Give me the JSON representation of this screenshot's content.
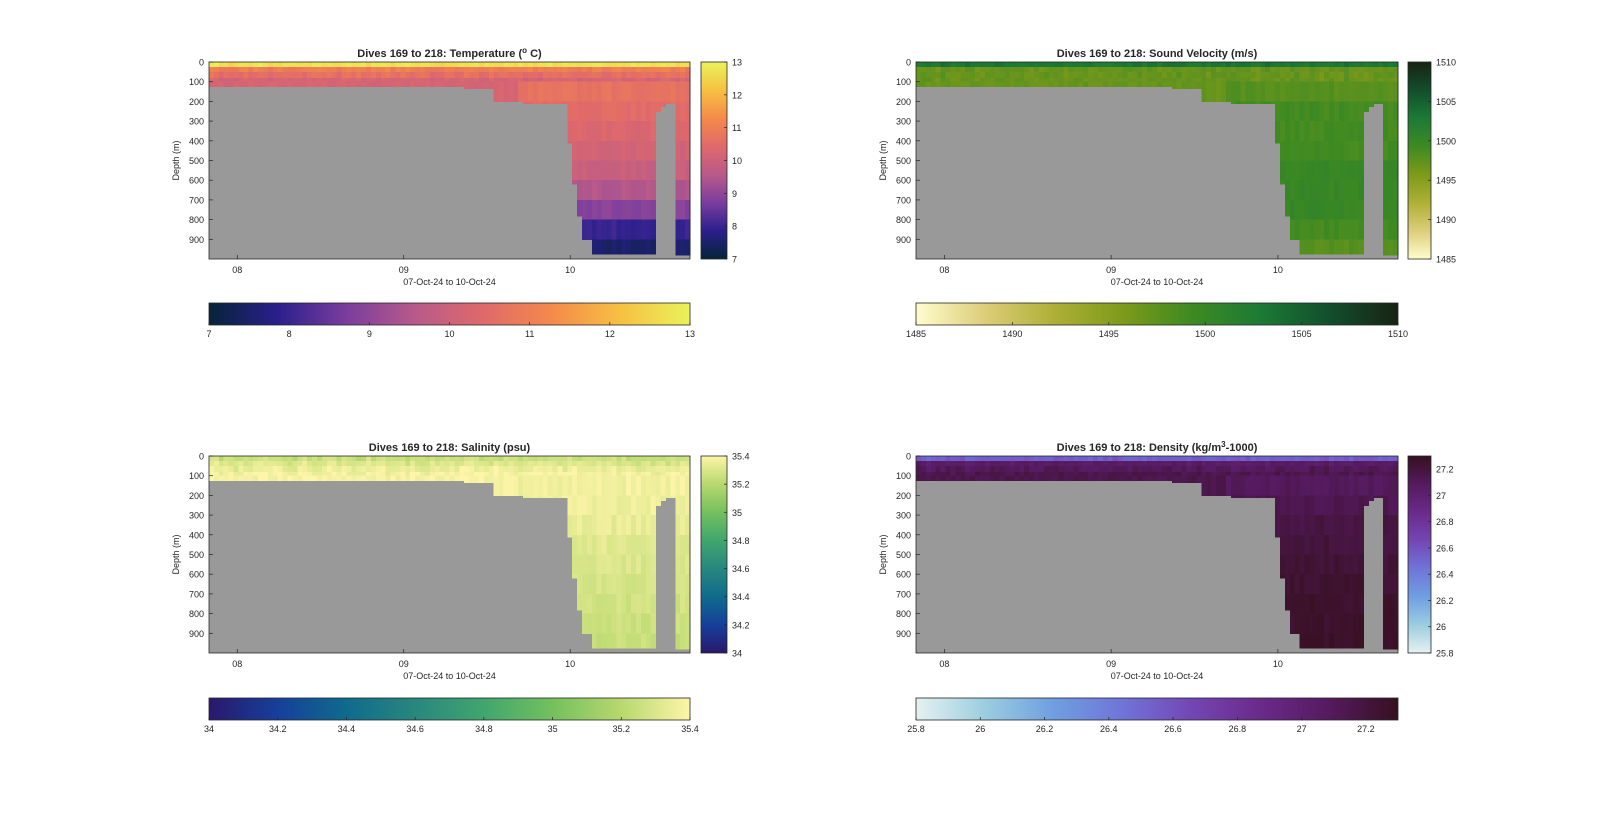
{
  "chart_data": [
    {
      "type": "heatmap",
      "key": "temperature",
      "title": "Dives 169 to 218: Temperature (",
      "title_sup": "o",
      "title_end": " C)",
      "xlabel": "07-Oct-24 to 10-Oct-24",
      "ylabel": "Depth (m)",
      "x_ticks": [
        "08",
        "09",
        "10"
      ],
      "y_ticks": [
        "0",
        "100",
        "200",
        "300",
        "400",
        "500",
        "600",
        "700",
        "800",
        "900"
      ],
      "ylim": [
        0,
        1000
      ],
      "colormap": "thermal",
      "colors": [
        "#062438",
        "#2a1f8c",
        "#7a3d9e",
        "#b85a8a",
        "#e0696a",
        "#f58a4a",
        "#f6c142",
        "#eaf25a"
      ],
      "clim": [
        7,
        13
      ],
      "colorbar_ticks": [
        "7",
        "8",
        "9",
        "10",
        "11",
        "12",
        "13"
      ],
      "surface_value": 12.7,
      "layer_values": [
        12.6,
        11.0,
        10.6,
        10.2
      ],
      "deep_profile": [
        11.0,
        10.7,
        10.5,
        10.3,
        10.1,
        9.9,
        9.5,
        8.9,
        8.0,
        7.5
      ],
      "mask_color": "#999999"
    },
    {
      "type": "heatmap",
      "key": "sound_velocity",
      "title": "Dives 169 to 218: Sound Velocity (m/s)",
      "xlabel": "07-Oct-24 to 10-Oct-24",
      "ylabel": "Depth (m)",
      "x_ticks": [
        "08",
        "09",
        "10"
      ],
      "y_ticks": [
        "0",
        "100",
        "200",
        "300",
        "400",
        "500",
        "600",
        "700",
        "800",
        "900"
      ],
      "ylim": [
        0,
        1000
      ],
      "colormap": "speed",
      "colors": [
        "#fffdcd",
        "#ddcd7a",
        "#aeb036",
        "#7d9a1a",
        "#3e8a22",
        "#1c7a35",
        "#134e2d",
        "#172313"
      ],
      "clim": [
        1485,
        1510
      ],
      "colorbar_ticks": [
        "1485",
        "1490",
        "1495",
        "1500",
        "1505",
        "1510"
      ],
      "surface_value": 1503,
      "layer_values": [
        1502,
        1497,
        1497,
        1497
      ],
      "deep_profile": [
        1498,
        1498,
        1499,
        1499,
        1499,
        1500,
        1500,
        1500,
        1499,
        1498
      ],
      "mask_color": "#999999"
    },
    {
      "type": "heatmap",
      "key": "salinity",
      "title": "Dives 169 to 218: Salinity (psu)",
      "xlabel": "07-Oct-24 to 10-Oct-24",
      "ylabel": "Depth (m)",
      "x_ticks": [
        "08",
        "09",
        "10"
      ],
      "y_ticks": [
        "0",
        "100",
        "200",
        "300",
        "400",
        "500",
        "600",
        "700",
        "800",
        "900"
      ],
      "ylim": [
        0,
        1000
      ],
      "colormap": "haline",
      "colors": [
        "#2a186c",
        "#163f9a",
        "#0f6b8c",
        "#28877e",
        "#40a66e",
        "#74c05e",
        "#b8d86e",
        "#fdf5a8"
      ],
      "clim": [
        34,
        35.4
      ],
      "colorbar_ticks": [
        "34",
        "34.2",
        "34.4",
        "34.6",
        "34.8",
        "35",
        "35.2",
        "35.4"
      ],
      "surface_value": 35.25,
      "layer_values": [
        35.2,
        35.3,
        35.35,
        35.38
      ],
      "deep_profile": [
        35.38,
        35.37,
        35.36,
        35.34,
        35.32,
        35.3,
        35.28,
        35.27,
        35.26,
        35.25
      ],
      "mask_color": "#999999"
    },
    {
      "type": "heatmap",
      "key": "density",
      "title": "Dives 169 to 218: Density (kg/m",
      "title_sup": "3",
      "title_end": "-1000)",
      "xlabel": "07-Oct-24 to 10-Oct-24",
      "ylabel": "Depth (m)",
      "x_ticks": [
        "08",
        "09",
        "10"
      ],
      "y_ticks": [
        "0",
        "100",
        "200",
        "300",
        "400",
        "500",
        "600",
        "700",
        "800",
        "900"
      ],
      "ylim": [
        0,
        1000
      ],
      "colormap": "dense",
      "colors": [
        "#e6f1f1",
        "#9ccde0",
        "#6f9fe0",
        "#7074d8",
        "#7446b3",
        "#6a2a8a",
        "#551a5f",
        "#36101f"
      ],
      "clim": [
        25.8,
        27.3
      ],
      "colorbar_ticks": [
        "25.8",
        "26",
        "26.2",
        "26.4",
        "26.6",
        "26.8",
        "27",
        "27.2"
      ],
      "surface_value": 26.55,
      "layer_values": [
        26.7,
        27.05,
        27.1,
        27.15
      ],
      "deep_profile": [
        27.05,
        27.1,
        27.14,
        27.18,
        27.2,
        27.22,
        27.24,
        27.25,
        27.26,
        27.27
      ],
      "mask_color": "#999999"
    }
  ]
}
